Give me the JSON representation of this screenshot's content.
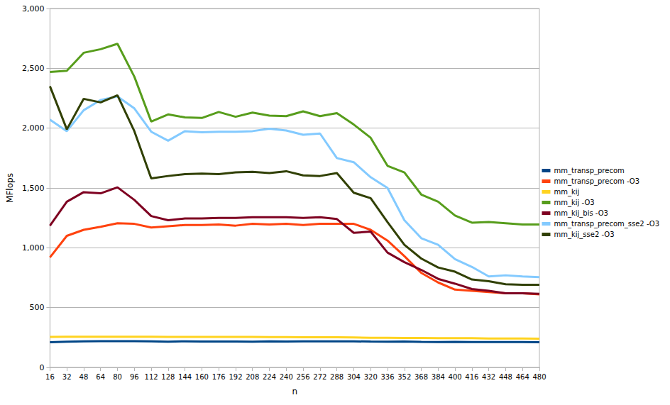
{
  "chart_data": {
    "type": "line",
    "x_label": "n",
    "y_label": "MFlops",
    "x": [
      16,
      32,
      48,
      64,
      80,
      96,
      112,
      128,
      144,
      160,
      176,
      192,
      208,
      224,
      240,
      256,
      272,
      288,
      304,
      320,
      336,
      352,
      368,
      384,
      400,
      416,
      432,
      448,
      464,
      480
    ],
    "xlim": [
      16,
      480
    ],
    "xticks": [
      16,
      32,
      48,
      64,
      80,
      96,
      112,
      128,
      144,
      160,
      176,
      192,
      208,
      224,
      240,
      256,
      272,
      288,
      304,
      320,
      336,
      352,
      368,
      384,
      400,
      416,
      432,
      448,
      464,
      480
    ],
    "ylim": [
      0,
      3000
    ],
    "yticks": [
      0,
      500,
      1000,
      1500,
      2000,
      2500,
      3000
    ],
    "grid": true,
    "legend": "right",
    "series": [
      {
        "name": "mm_transp_precom",
        "color": "#004586",
        "values": [
          210,
          215,
          218,
          220,
          220,
          220,
          218,
          215,
          218,
          216,
          216,
          216,
          215,
          218,
          216,
          218,
          218,
          218,
          218,
          216,
          215,
          216,
          213,
          212,
          214,
          212,
          212,
          212,
          212,
          210
        ]
      },
      {
        "name": "mm_transp_precom -O3",
        "color": "#ff420e",
        "values": [
          920,
          1100,
          1150,
          1175,
          1205,
          1200,
          1170,
          1180,
          1190,
          1190,
          1195,
          1185,
          1200,
          1195,
          1200,
          1190,
          1200,
          1200,
          1200,
          1150,
          1060,
          930,
          790,
          710,
          650,
          640,
          630,
          620,
          620,
          610
        ]
      },
      {
        "name": "mm_kij",
        "color": "#ffd320",
        "values": [
          255,
          256,
          257,
          257,
          257,
          257,
          256,
          255,
          255,
          255,
          255,
          255,
          255,
          254,
          253,
          252,
          252,
          252,
          250,
          248,
          248,
          246,
          246,
          245,
          245,
          244,
          242,
          242,
          241,
          240
        ]
      },
      {
        "name": "mm_kij -O3",
        "color": "#579d1c",
        "values": [
          2470,
          2480,
          2630,
          2660,
          2705,
          2430,
          2055,
          2115,
          2090,
          2085,
          2135,
          2095,
          2130,
          2105,
          2100,
          2140,
          2100,
          2125,
          2030,
          1920,
          1685,
          1630,
          1445,
          1385,
          1270,
          1210,
          1215,
          1205,
          1195,
          1195
        ]
      },
      {
        "name": "mm_kij_bis -O3",
        "color": "#7e0021",
        "values": [
          1185,
          1385,
          1465,
          1455,
          1505,
          1400,
          1265,
          1230,
          1245,
          1245,
          1250,
          1250,
          1255,
          1255,
          1255,
          1250,
          1255,
          1240,
          1125,
          1135,
          960,
          880,
          815,
          740,
          700,
          655,
          640,
          620,
          620,
          615
        ]
      },
      {
        "name": "mm_transp_precom_sse2 -O3",
        "color": "#83caff",
        "values": [
          2070,
          1975,
          2150,
          2235,
          2265,
          2165,
          1970,
          1895,
          1975,
          1965,
          1970,
          1970,
          1975,
          1995,
          1980,
          1945,
          1955,
          1750,
          1715,
          1590,
          1500,
          1230,
          1080,
          1025,
          905,
          840,
          760,
          770,
          760,
          755
        ]
      },
      {
        "name": "mm_kij_sse2 -O3",
        "color": "#314004",
        "values": [
          2350,
          1990,
          2245,
          2215,
          2275,
          1975,
          1580,
          1600,
          1615,
          1620,
          1615,
          1630,
          1635,
          1625,
          1640,
          1605,
          1600,
          1625,
          1460,
          1415,
          1215,
          1025,
          910,
          835,
          800,
          735,
          720,
          695,
          690,
          690
        ]
      }
    ]
  }
}
